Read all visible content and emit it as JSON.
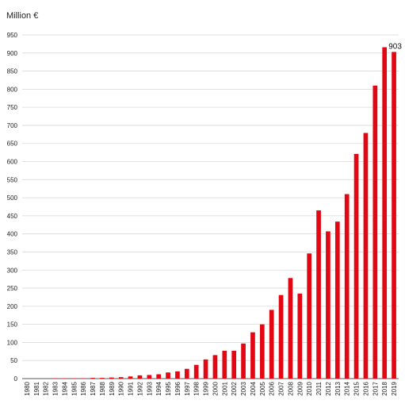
{
  "chart_data": {
    "type": "bar",
    "ylabel": "Million €",
    "ylim": [
      0,
      950
    ],
    "y_ticks": [
      0,
      50,
      100,
      150,
      200,
      250,
      300,
      350,
      400,
      450,
      500,
      550,
      600,
      650,
      700,
      750,
      800,
      850,
      900,
      950
    ],
    "grid": true,
    "bar_color": "#e30613",
    "categories": [
      "1980",
      "1981",
      "1982",
      "1983",
      "1984",
      "1985",
      "1986",
      "1987",
      "1988",
      "1989",
      "1990",
      "1991",
      "1992",
      "1993",
      "1994",
      "1995",
      "1996",
      "1997",
      "1998",
      "1999",
      "2000",
      "2001",
      "2002",
      "2003",
      "2004",
      "2005",
      "2006",
      "2007",
      "2008",
      "2009",
      "2010",
      "2011",
      "2012",
      "2013",
      "2014",
      "2015",
      "2016",
      "2017",
      "2018",
      "2019"
    ],
    "values": [
      0,
      0,
      0,
      1,
      1,
      1,
      1,
      2,
      2,
      3,
      4,
      6,
      9,
      10,
      12,
      17,
      20,
      27,
      38,
      53,
      65,
      77,
      77,
      97,
      128,
      150,
      190,
      231,
      278,
      235,
      346,
      465,
      407,
      434,
      510,
      621,
      679,
      810,
      916,
      903
    ],
    "annotations": [
      {
        "category": "2019",
        "text": "903"
      }
    ]
  }
}
